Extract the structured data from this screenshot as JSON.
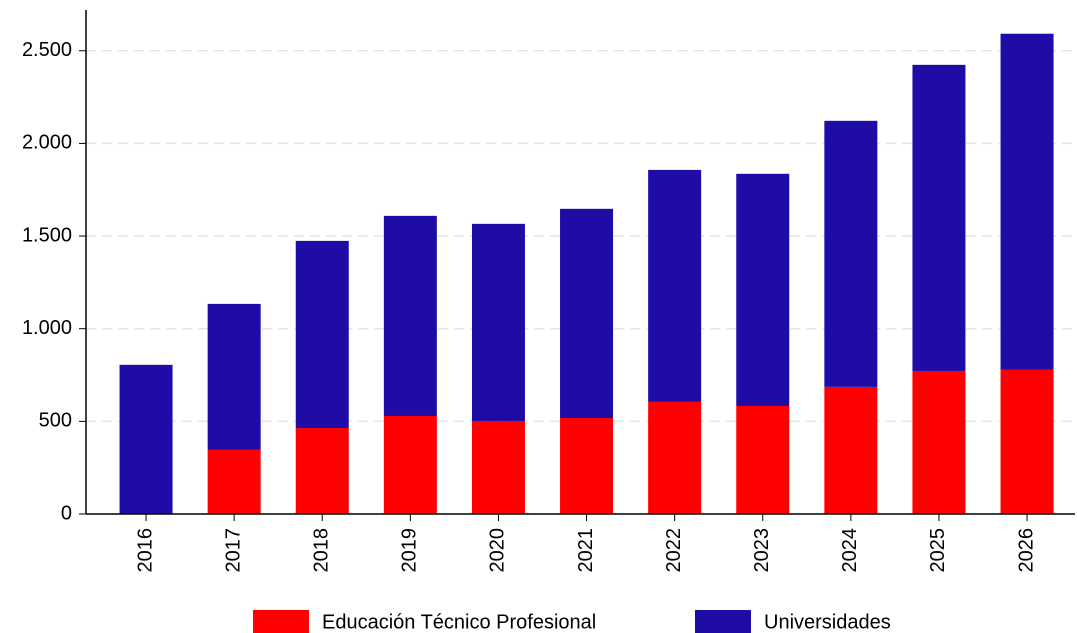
{
  "chart_data": {
    "type": "stacked_bar",
    "categories": [
      "2016",
      "2017",
      "2018",
      "2019",
      "2020",
      "2021",
      "2022",
      "2023",
      "2024",
      "2025",
      "2026"
    ],
    "series": [
      {
        "name": "Educación Técnico Profesional",
        "color": "#ff0000",
        "values": [
          0,
          346,
          464,
          529,
          502,
          518,
          605,
          583,
          686,
          772,
          778
        ]
      },
      {
        "name": "Universidades",
        "color": "#1f0ca6",
        "values": [
          805,
          788,
          1010,
          1080,
          1064,
          1129,
          1252,
          1253,
          1436,
          1652,
          1814
        ]
      }
    ],
    "ylim": [
      0,
      2720
    ],
    "yticks": [
      0,
      500,
      {
        "value": 1000,
        "label": "1.000"
      },
      {
        "value": 1500,
        "label": "1.500"
      },
      {
        "value": 2000,
        "label": "2.000"
      },
      {
        "value": 2500,
        "label": "2.500"
      }
    ],
    "grid": true,
    "legend": "bottom"
  }
}
